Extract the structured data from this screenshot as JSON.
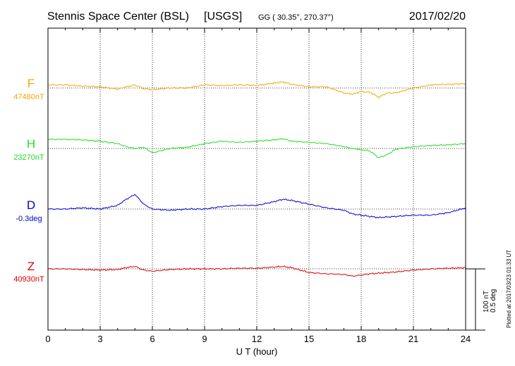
{
  "header": {
    "station": "Stennis Space Center (BSL)",
    "org": "[USGS]",
    "coords": "GG ( 30.35°, 270.37°)",
    "date": "2017/02/20"
  },
  "plotted_note": "Plotted at 2017/03/23 01:33 UT",
  "scale_labels": [
    "100 nT",
    "0.5 deg"
  ],
  "colors": {
    "F": "#f0a800",
    "H": "#22dd22",
    "D": "#0000cc",
    "Z": "#dd0000"
  },
  "chart_data": {
    "type": "line",
    "xlabel": "U T (hour)",
    "xlim": [
      0,
      24
    ],
    "xticks": [
      0,
      3,
      6,
      9,
      12,
      15,
      18,
      21,
      24
    ],
    "grid": true,
    "series": [
      {
        "name": "F",
        "baseline": "47480nT",
        "unit": "nT",
        "x": [
          0,
          1,
          2,
          3,
          4,
          4.5,
          5,
          5.5,
          6,
          7,
          8,
          9,
          10,
          11,
          12,
          13,
          13.5,
          14,
          15,
          16,
          17,
          17.5,
          18,
          18.5,
          19,
          19.5,
          20,
          21,
          22,
          23,
          24
        ],
        "y": [
          5,
          5,
          3,
          2,
          -2,
          2,
          5,
          -1,
          -3,
          0,
          0,
          5,
          4,
          5,
          4,
          8,
          10,
          6,
          2,
          2,
          -8,
          -10,
          -6,
          -7,
          -15,
          -8,
          -8,
          0,
          5,
          6,
          7
        ]
      },
      {
        "name": "H",
        "baseline": "23270nT",
        "unit": "nT",
        "x": [
          0,
          1,
          2,
          3,
          3.5,
          4,
          4.5,
          5,
          5.5,
          6,
          7,
          8,
          9,
          10,
          11,
          12,
          13,
          13.5,
          14,
          15,
          16,
          17,
          17.5,
          18,
          18.5,
          19,
          19.5,
          20,
          21,
          22,
          23,
          24
        ],
        "y": [
          15,
          15,
          14,
          12,
          10,
          8,
          3,
          0,
          2,
          -7,
          0,
          2,
          8,
          12,
          10,
          12,
          14,
          16,
          12,
          10,
          8,
          3,
          0,
          -2,
          -4,
          -15,
          -10,
          -1,
          3,
          5,
          6,
          8
        ]
      },
      {
        "name": "D",
        "baseline": "-0.3deg",
        "unit": "deg",
        "x": [
          0,
          1,
          2,
          3,
          4,
          4.5,
          5,
          5.5,
          6,
          7,
          8,
          9,
          10,
          11,
          12,
          13,
          13.5,
          14,
          15,
          16,
          17,
          17.5,
          18,
          18.5,
          19,
          20,
          21,
          22,
          23,
          24
        ],
        "y": [
          0,
          0,
          0.01,
          0,
          0.03,
          0.08,
          0.12,
          0.04,
          0,
          -0.01,
          0,
          0,
          0.02,
          0.03,
          0.03,
          0.06,
          0.08,
          0.07,
          0.04,
          0.01,
          -0.01,
          -0.04,
          -0.05,
          -0.06,
          -0.07,
          -0.06,
          -0.05,
          -0.05,
          -0.03,
          0.01
        ]
      },
      {
        "name": "Z",
        "baseline": "40930nT",
        "unit": "nT",
        "x": [
          0,
          1,
          2,
          3,
          4,
          4.5,
          5,
          5.5,
          6,
          7,
          8,
          9,
          10,
          11,
          12,
          13,
          13.5,
          14,
          15,
          16,
          17,
          17.5,
          18,
          18.5,
          19,
          20,
          21,
          22,
          23,
          24
        ],
        "y": [
          0,
          0,
          -1,
          -2,
          -1,
          2,
          4,
          -2,
          -4,
          -1,
          0,
          0,
          0,
          1,
          1,
          3,
          4,
          2,
          -6,
          -8,
          -9,
          -12,
          -10,
          -8,
          -7,
          -5,
          -2,
          0,
          1,
          2
        ]
      }
    ]
  }
}
